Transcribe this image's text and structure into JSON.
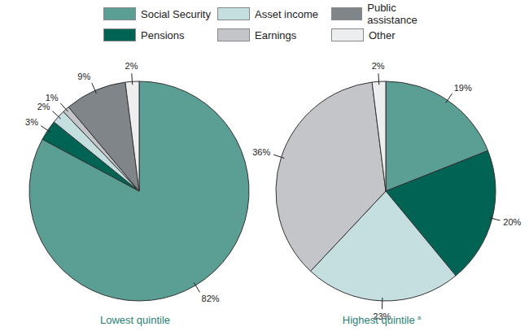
{
  "chart_data": [
    {
      "type": "pie",
      "title": "Lowest quintile",
      "categories": [
        "Social Security",
        "Pensions",
        "Asset income",
        "Earnings",
        "Public assistance",
        "Other"
      ],
      "values": [
        82,
        3,
        2,
        1,
        9,
        2
      ],
      "value_labels": [
        "82%",
        "3%",
        "2%",
        "1%",
        "9%",
        "2%"
      ],
      "colors": [
        "#5a9e94",
        "#006354",
        "#c5dfe0",
        "#c4c5c8",
        "#80858a",
        "#eceeef"
      ],
      "legend": "top",
      "data_labels": true
    },
    {
      "type": "pie",
      "title": "Highest quintile",
      "title_marker": "a",
      "categories": [
        "Social Security",
        "Pensions",
        "Asset income",
        "Earnings",
        "Other"
      ],
      "values": [
        19,
        20,
        23,
        36,
        2
      ],
      "value_labels": [
        "19%",
        "20%",
        "23%",
        "36%",
        "2%"
      ],
      "colors": [
        "#5a9e94",
        "#006354",
        "#c5dfe0",
        "#c4c5c8",
        "#eceeef"
      ],
      "data_labels": true
    }
  ]
}
